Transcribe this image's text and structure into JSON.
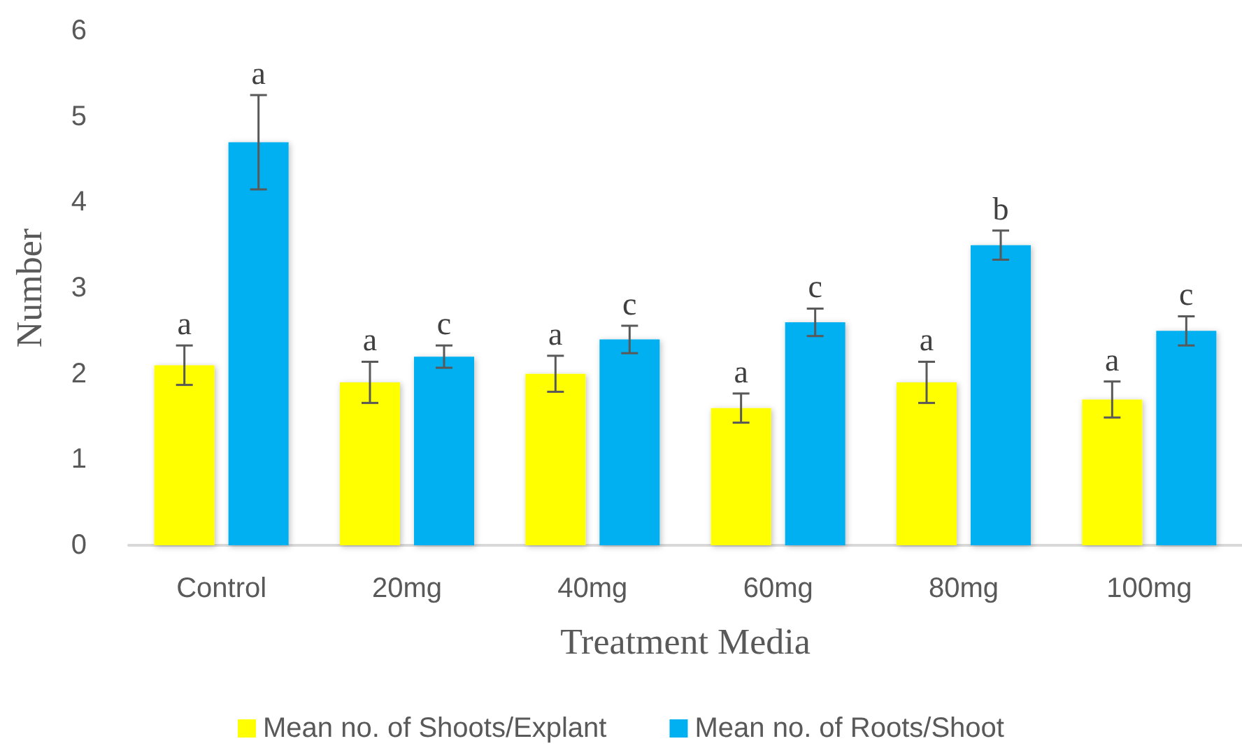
{
  "chart_data": {
    "type": "bar",
    "xlabel": "Treatment Media",
    "ylabel": "Number",
    "categories": [
      "Control",
      "20mg",
      "40mg",
      "60mg",
      "80mg",
      "100mg"
    ],
    "series": [
      {
        "name": "Mean no. of Shoots/Explant",
        "color": "#ffff00",
        "values": [
          2.1,
          1.9,
          2.0,
          1.6,
          1.9,
          1.7
        ],
        "errors": [
          0.23,
          0.24,
          0.21,
          0.17,
          0.24,
          0.21
        ],
        "value_labels": [
          "a",
          "a",
          "a",
          "a",
          "a",
          "a"
        ]
      },
      {
        "name": "Mean no. of Roots/Shoot",
        "color": "#00b0f0",
        "values": [
          4.7,
          2.2,
          2.4,
          2.6,
          3.5,
          2.5
        ],
        "errors": [
          0.55,
          0.13,
          0.16,
          0.16,
          0.17,
          0.17
        ],
        "value_labels": [
          "a",
          "c",
          "c",
          "c",
          "b",
          "c"
        ]
      }
    ],
    "ylim": [
      0,
      6
    ],
    "yticks": [
      0,
      1,
      2,
      3,
      4,
      5,
      6
    ],
    "grid": false,
    "legend": "bottom"
  }
}
